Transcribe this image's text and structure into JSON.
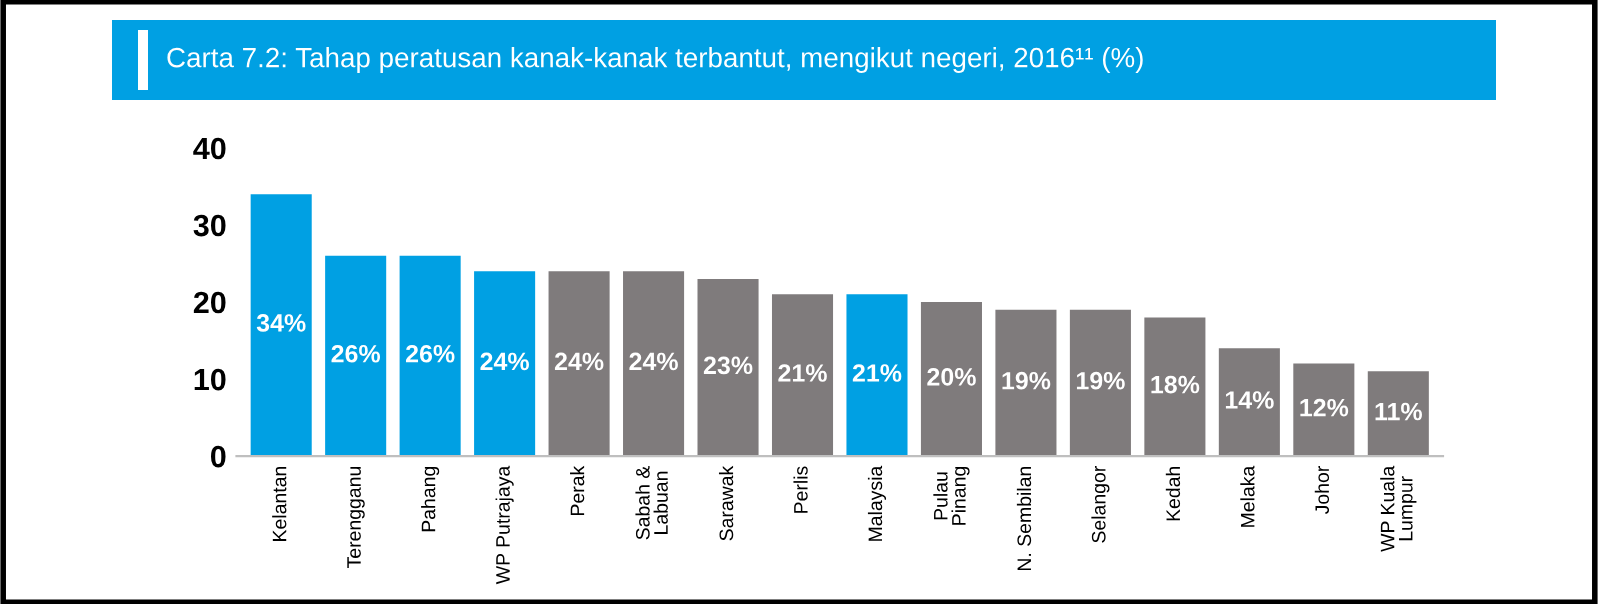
{
  "chart_data": {
    "type": "bar",
    "title": "Carta 7.2: Tahap peratusan kanak-kanak terbantut, mengikut negeri, 2016¹¹ (%)",
    "categories": [
      "Kelantan",
      "Terengganu",
      "Pahang",
      "WP Putrajaya",
      "Perak",
      "Sabah &\nLabuan",
      "Sarawak",
      "Perlis",
      "Malaysia",
      "Pulau\nPinang",
      "N. Sembilan",
      "Selangor",
      "Kedah",
      "Melaka",
      "Johor",
      "WP Kuala\nLumpur"
    ],
    "values": [
      34,
      26,
      26,
      24,
      24,
      24,
      23,
      21,
      21,
      20,
      19,
      19,
      18,
      14,
      12,
      11
    ],
    "value_labels": [
      "34%",
      "26%",
      "26%",
      "24%",
      "24%",
      "24%",
      "23%",
      "21%",
      "21%",
      "20%",
      "19%",
      "19%",
      "18%",
      "14%",
      "12%",
      "11%"
    ],
    "colors": [
      "#00a0e3",
      "#00a0e3",
      "#00a0e3",
      "#00a0e3",
      "#7f7b7c",
      "#7f7b7c",
      "#7f7b7c",
      "#7f7b7c",
      "#00a0e3",
      "#7f7b7c",
      "#7f7b7c",
      "#7f7b7c",
      "#7f7b7c",
      "#7f7b7c",
      "#7f7b7c",
      "#7f7b7c"
    ],
    "ylim": [
      0,
      40
    ],
    "yticks": [
      0,
      10,
      20,
      30,
      40
    ],
    "grid": false,
    "legend": false
  }
}
